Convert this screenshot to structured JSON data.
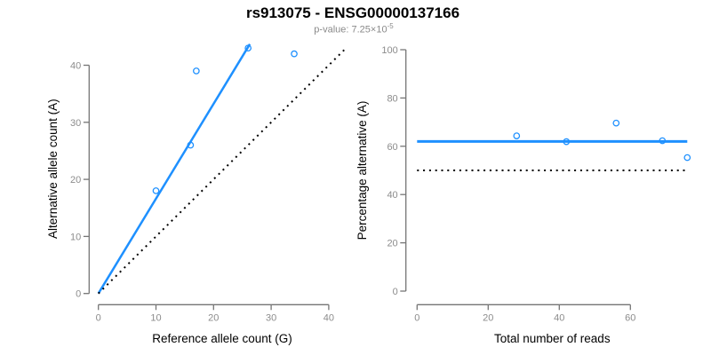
{
  "header": {
    "title": "rs913075 - ENSG00000137166",
    "subtitle_prefix": "p-value: 7.25×10",
    "subtitle_exponent": "-5"
  },
  "colors": {
    "accent_blue": "#1e90ff",
    "line_black": "#000000",
    "axis": "#757575",
    "tick_label": "#8c8c8c",
    "axis_title": "#000000",
    "subtitle": "#8a8a8a",
    "background": "#ffffff"
  },
  "chart_data": [
    {
      "type": "scatter",
      "panel": "left",
      "xlabel": "Reference allele count (G)",
      "ylabel": "Alternative allele count (A)",
      "xlim": [
        0,
        43
      ],
      "ylim": [
        0,
        43.7
      ],
      "xticks": [
        0,
        10,
        20,
        30,
        40
      ],
      "yticks": [
        0,
        10,
        20,
        30,
        40
      ],
      "grid": false,
      "points": [
        [
          10,
          18
        ],
        [
          16,
          26
        ],
        [
          17,
          39
        ],
        [
          26,
          43
        ],
        [
          34,
          42
        ]
      ],
      "marker": {
        "shape": "open-circle",
        "radius": 3.2,
        "color": "accent_blue"
      },
      "lines": [
        {
          "name": "fit-line",
          "style": "solid",
          "color": "accent_blue",
          "width": 2.5,
          "points": [
            [
              0,
              0
            ],
            [
              26.3,
              43.7
            ]
          ]
        },
        {
          "name": "identity-line",
          "style": "dotted",
          "color": "line_black",
          "width": 2,
          "points": [
            [
              0,
              0
            ],
            [
              43,
              43
            ]
          ]
        }
      ]
    },
    {
      "type": "scatter",
      "panel": "right",
      "xlabel": "Total number of reads",
      "ylabel": "Percentage alternative (A)",
      "xlim": [
        0,
        76
      ],
      "ylim": [
        0,
        100
      ],
      "xticks": [
        0,
        20,
        40,
        60
      ],
      "yticks": [
        0,
        20,
        40,
        60,
        80,
        100
      ],
      "grid": false,
      "points": [
        [
          28,
          64.3
        ],
        [
          42,
          61.9
        ],
        [
          56,
          69.6
        ],
        [
          69,
          62.3
        ],
        [
          76,
          55.3
        ]
      ],
      "marker": {
        "shape": "open-circle",
        "radius": 3.2,
        "color": "accent_blue"
      },
      "lines": [
        {
          "name": "mean-line",
          "style": "solid",
          "color": "accent_blue",
          "width": 3,
          "points": [
            [
              0,
              62
            ],
            [
              76,
              62
            ]
          ]
        },
        {
          "name": "null-line",
          "style": "dotted",
          "color": "line_black",
          "width": 2,
          "points": [
            [
              0,
              50
            ],
            [
              76,
              50
            ]
          ]
        }
      ]
    }
  ]
}
